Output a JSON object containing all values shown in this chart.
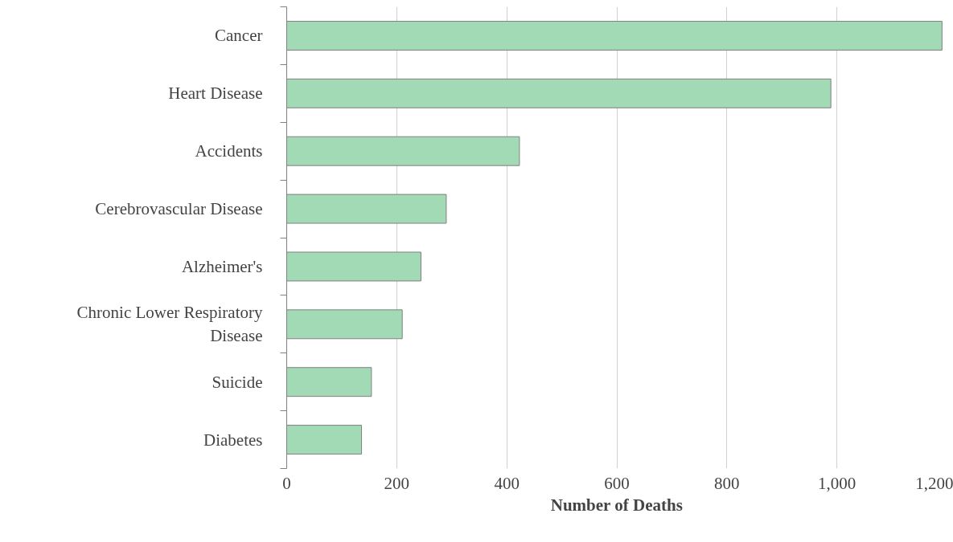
{
  "chart_data": {
    "type": "bar",
    "orientation": "horizontal",
    "xlabel": "Number of Deaths",
    "categories": [
      "Cancer",
      "Heart Disease",
      "Accidents",
      "Cerebrovascular Disease",
      "Alzheimer's",
      "Chronic Lower Respiratory Disease",
      "Suicide",
      "Diabetes"
    ],
    "values": [
      1191,
      989,
      423,
      290,
      244,
      210,
      154,
      136
    ],
    "color": "#a1dab4",
    "xlim": [
      0,
      1200
    ],
    "xticks": [
      0,
      {
        "value": 200,
        "label": "200"
      },
      {
        "value": 400,
        "label": "400"
      },
      {
        "value": 600,
        "label": "600"
      },
      {
        "value": 800,
        "label": "800"
      },
      {
        "value": 1000,
        "label": "1,000"
      },
      {
        "value": 1200,
        "label": "1,200"
      }
    ],
    "grid": "x"
  }
}
